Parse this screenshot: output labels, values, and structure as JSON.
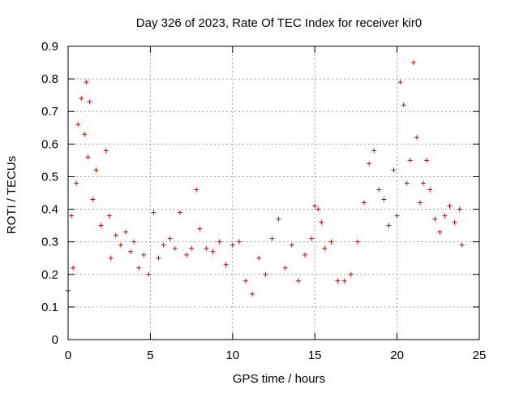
{
  "chart_data": {
    "type": "scatter",
    "title": "Day 326 of 2023, Rate Of TEC Index for receiver kir0",
    "xlabel": "GPS time / hours",
    "ylabel": "ROTI / TECUs",
    "xlim": [
      0,
      25
    ],
    "ylim": [
      0,
      0.9
    ],
    "x_ticks": [
      0,
      5,
      10,
      15,
      20,
      25
    ],
    "y_ticks": [
      0,
      0.1,
      0.2,
      0.3,
      0.4,
      0.5,
      0.6,
      0.7,
      0.8,
      0.9
    ],
    "x_tick_labels": [
      "0",
      "5",
      "10",
      "15",
      "20",
      "25"
    ],
    "y_tick_labels": [
      "0",
      "0.1",
      "0.2",
      "0.3",
      "0.4",
      "0.5",
      "0.6",
      "0.7",
      "0.8",
      "0.9"
    ],
    "grid": true,
    "marker": "+",
    "color": "#e00000",
    "series": [
      {
        "x": [
          0.0,
          0.2,
          0.3,
          0.5,
          0.6,
          0.8,
          1.0,
          1.1,
          1.2,
          1.3,
          1.5,
          1.7,
          2.0,
          2.3,
          2.5,
          2.6,
          2.9,
          3.2,
          3.5,
          3.8,
          4.0,
          4.3,
          4.6,
          4.9,
          5.2,
          5.5,
          5.8,
          6.2,
          6.5,
          6.8,
          7.2,
          7.5,
          7.8,
          8.0,
          8.4,
          8.8,
          9.2,
          9.6,
          10.0,
          10.4,
          10.8,
          11.2,
          11.6,
          12.0,
          12.4,
          12.8,
          13.2,
          13.6,
          14.0,
          14.4,
          14.8,
          15.0,
          15.2,
          15.4,
          15.6,
          16.0,
          16.4,
          16.8,
          17.2,
          17.6,
          18.0,
          18.3,
          18.6,
          18.9,
          19.2,
          19.5,
          19.8,
          20.0,
          20.2,
          20.4,
          20.6,
          20.8,
          21.0,
          21.2,
          21.4,
          21.6,
          21.8,
          22.0,
          22.3,
          22.6,
          22.9,
          23.2,
          23.5,
          23.8,
          23.95
        ],
        "y": [
          0.15,
          0.38,
          0.22,
          0.48,
          0.66,
          0.74,
          0.63,
          0.79,
          0.56,
          0.73,
          0.43,
          0.52,
          0.35,
          0.58,
          0.38,
          0.25,
          0.32,
          0.29,
          0.33,
          0.27,
          0.3,
          0.22,
          0.26,
          0.2,
          0.39,
          0.25,
          0.29,
          0.31,
          0.28,
          0.39,
          0.26,
          0.28,
          0.46,
          0.34,
          0.28,
          0.27,
          0.3,
          0.23,
          0.29,
          0.3,
          0.18,
          0.14,
          0.25,
          0.2,
          0.31,
          0.37,
          0.22,
          0.29,
          0.18,
          0.26,
          0.31,
          0.41,
          0.4,
          0.36,
          0.28,
          0.3,
          0.18,
          0.18,
          0.2,
          0.3,
          0.42,
          0.54,
          0.58,
          0.46,
          0.43,
          0.35,
          0.52,
          0.38,
          0.79,
          0.72,
          0.48,
          0.55,
          0.85,
          0.62,
          0.42,
          0.48,
          0.55,
          0.46,
          0.37,
          0.33,
          0.38,
          0.41,
          0.36,
          0.4,
          0.29
        ]
      }
    ]
  }
}
